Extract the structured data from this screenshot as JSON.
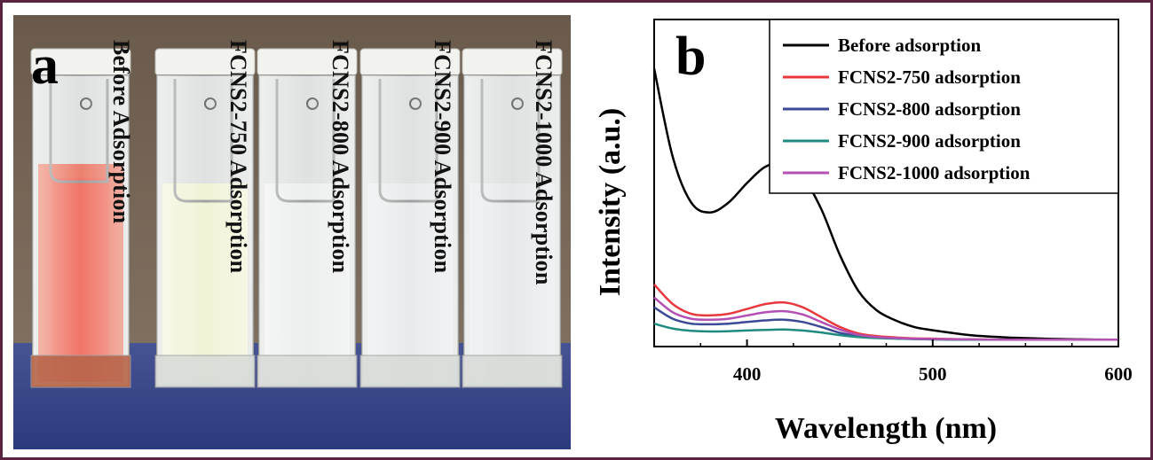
{
  "panel_a": {
    "letter": "a",
    "cuvettes": [
      {
        "label": "Before Adsorption",
        "liquid_color": "#e86a54"
      },
      {
        "label": "FCNS2-750 Adsorption",
        "liquid_color": "#eef0cf"
      },
      {
        "label": "FCNS2-800 Adsorption",
        "liquid_color": "#e9ecea"
      },
      {
        "label": "FCNS2-900 Adsorption",
        "liquid_color": "#e4e7e9"
      },
      {
        "label": "FCNS2-1000 Adsorption",
        "liquid_color": "#e2e5e8"
      }
    ],
    "colors": {
      "wall": "#6f6050",
      "table": "#38478c"
    }
  },
  "panel_b": {
    "letter": "b"
  },
  "chart_data": {
    "type": "line",
    "xlabel": "Wavelength (nm)",
    "ylabel": "Intensity (a.u.)",
    "xlim": [
      350,
      600
    ],
    "ylim": [
      0,
      1
    ],
    "x_ticks": [
      400,
      500,
      600
    ],
    "x_tick_labels": [
      "400",
      "500",
      "600"
    ],
    "y_ticks_shown": false,
    "grid": false,
    "legend_position": "top-right",
    "x": [
      350,
      360,
      370,
      380,
      390,
      400,
      410,
      420,
      430,
      440,
      450,
      460,
      470,
      480,
      490,
      500,
      520,
      540,
      560,
      580,
      600
    ],
    "series": [
      {
        "name": "Before adsorption",
        "color": "#000000",
        "values": [
          0.85,
          0.58,
          0.44,
          0.41,
          0.44,
          0.5,
          0.55,
          0.56,
          0.52,
          0.42,
          0.28,
          0.17,
          0.11,
          0.08,
          0.06,
          0.05,
          0.035,
          0.028,
          0.024,
          0.022,
          0.021
        ]
      },
      {
        "name": "FCNS2-750 adsorption",
        "color": "#e8383d",
        "values": [
          0.19,
          0.13,
          0.1,
          0.095,
          0.1,
          0.115,
          0.13,
          0.135,
          0.12,
          0.09,
          0.06,
          0.04,
          0.032,
          0.028,
          0.025,
          0.024,
          0.022,
          0.021,
          0.021,
          0.021,
          0.021
        ]
      },
      {
        "name": "FCNS2-800 adsorption",
        "color": "#3c4a96",
        "values": [
          0.12,
          0.085,
          0.07,
          0.068,
          0.07,
          0.075,
          0.08,
          0.082,
          0.075,
          0.06,
          0.042,
          0.032,
          0.027,
          0.025,
          0.023,
          0.022,
          0.021,
          0.021,
          0.021,
          0.021,
          0.021
        ]
      },
      {
        "name": "FCNS2-900 adsorption",
        "color": "#1f8a7f",
        "values": [
          0.07,
          0.055,
          0.048,
          0.046,
          0.047,
          0.049,
          0.051,
          0.052,
          0.049,
          0.043,
          0.035,
          0.029,
          0.026,
          0.024,
          0.023,
          0.022,
          0.021,
          0.021,
          0.021,
          0.021,
          0.021
        ]
      },
      {
        "name": "FCNS2-1000 adsorption",
        "color": "#b44fb4",
        "values": [
          0.15,
          0.105,
          0.085,
          0.082,
          0.085,
          0.095,
          0.105,
          0.108,
          0.098,
          0.075,
          0.052,
          0.036,
          0.029,
          0.026,
          0.024,
          0.023,
          0.022,
          0.021,
          0.021,
          0.021,
          0.021
        ]
      }
    ]
  }
}
